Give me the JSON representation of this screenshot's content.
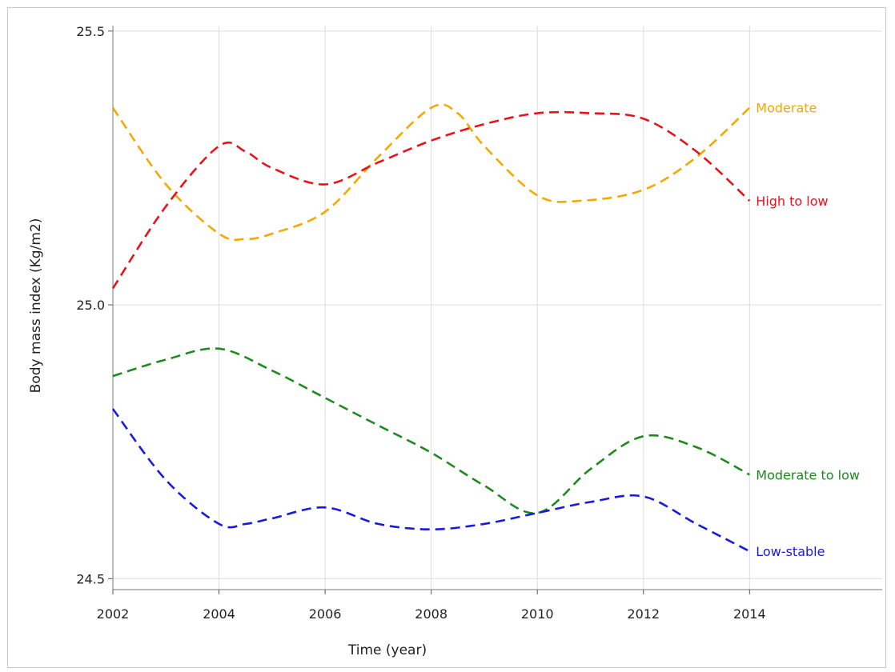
{
  "chart_data": {
    "type": "line",
    "xlabel": "Time (year)",
    "ylabel": "Body mass index (Kg/m2)",
    "xticks": [
      2002,
      2004,
      2006,
      2008,
      2010,
      2012,
      2014
    ],
    "yticks": [
      "24.5",
      "25.0",
      "25.5"
    ],
    "xlim": [
      2002,
      2016.5
    ],
    "ylim": [
      24.48,
      25.51
    ],
    "grid": true,
    "legend": "inline-right",
    "series": [
      {
        "name": "Moderate",
        "color": "#f5a800",
        "x": [
          2002,
          2003,
          2004,
          2004.5,
          2005,
          2006,
          2007,
          2008,
          2008.5,
          2009,
          2010,
          2010.8,
          2012,
          2013,
          2014
        ],
        "y": [
          25.36,
          25.22,
          25.13,
          25.12,
          25.13,
          25.17,
          25.27,
          25.36,
          25.35,
          25.29,
          25.2,
          25.19,
          25.21,
          25.27,
          25.36
        ]
      },
      {
        "name": "High to low",
        "color": "#e8131a",
        "x": [
          2002,
          2003,
          2004,
          2004.5,
          2005,
          2006,
          2007,
          2008,
          2009,
          2010,
          2011,
          2012,
          2013,
          2014
        ],
        "y": [
          25.03,
          25.18,
          25.29,
          25.28,
          25.25,
          25.22,
          25.26,
          25.3,
          25.33,
          25.35,
          25.35,
          25.34,
          25.28,
          25.19
        ]
      },
      {
        "name": "Moderate to low",
        "color": "#1e8a1e",
        "x": [
          2002,
          2003,
          2004,
          2005,
          2006,
          2007,
          2008,
          2009,
          2010,
          2011,
          2012,
          2013,
          2014
        ],
        "y": [
          24.87,
          24.9,
          24.92,
          24.88,
          24.83,
          24.78,
          24.73,
          24.67,
          24.62,
          24.7,
          24.76,
          24.74,
          24.69
        ]
      },
      {
        "name": "Low-stable",
        "color": "#1a1adc",
        "x": [
          2002,
          2003,
          2004,
          2004.5,
          2005,
          2006,
          2007,
          2008,
          2009,
          2010,
          2011,
          2012,
          2013,
          2014
        ],
        "y": [
          24.81,
          24.68,
          24.6,
          24.6,
          24.61,
          24.63,
          24.6,
          24.59,
          24.6,
          24.62,
          24.64,
          24.65,
          24.6,
          24.55
        ]
      }
    ]
  }
}
